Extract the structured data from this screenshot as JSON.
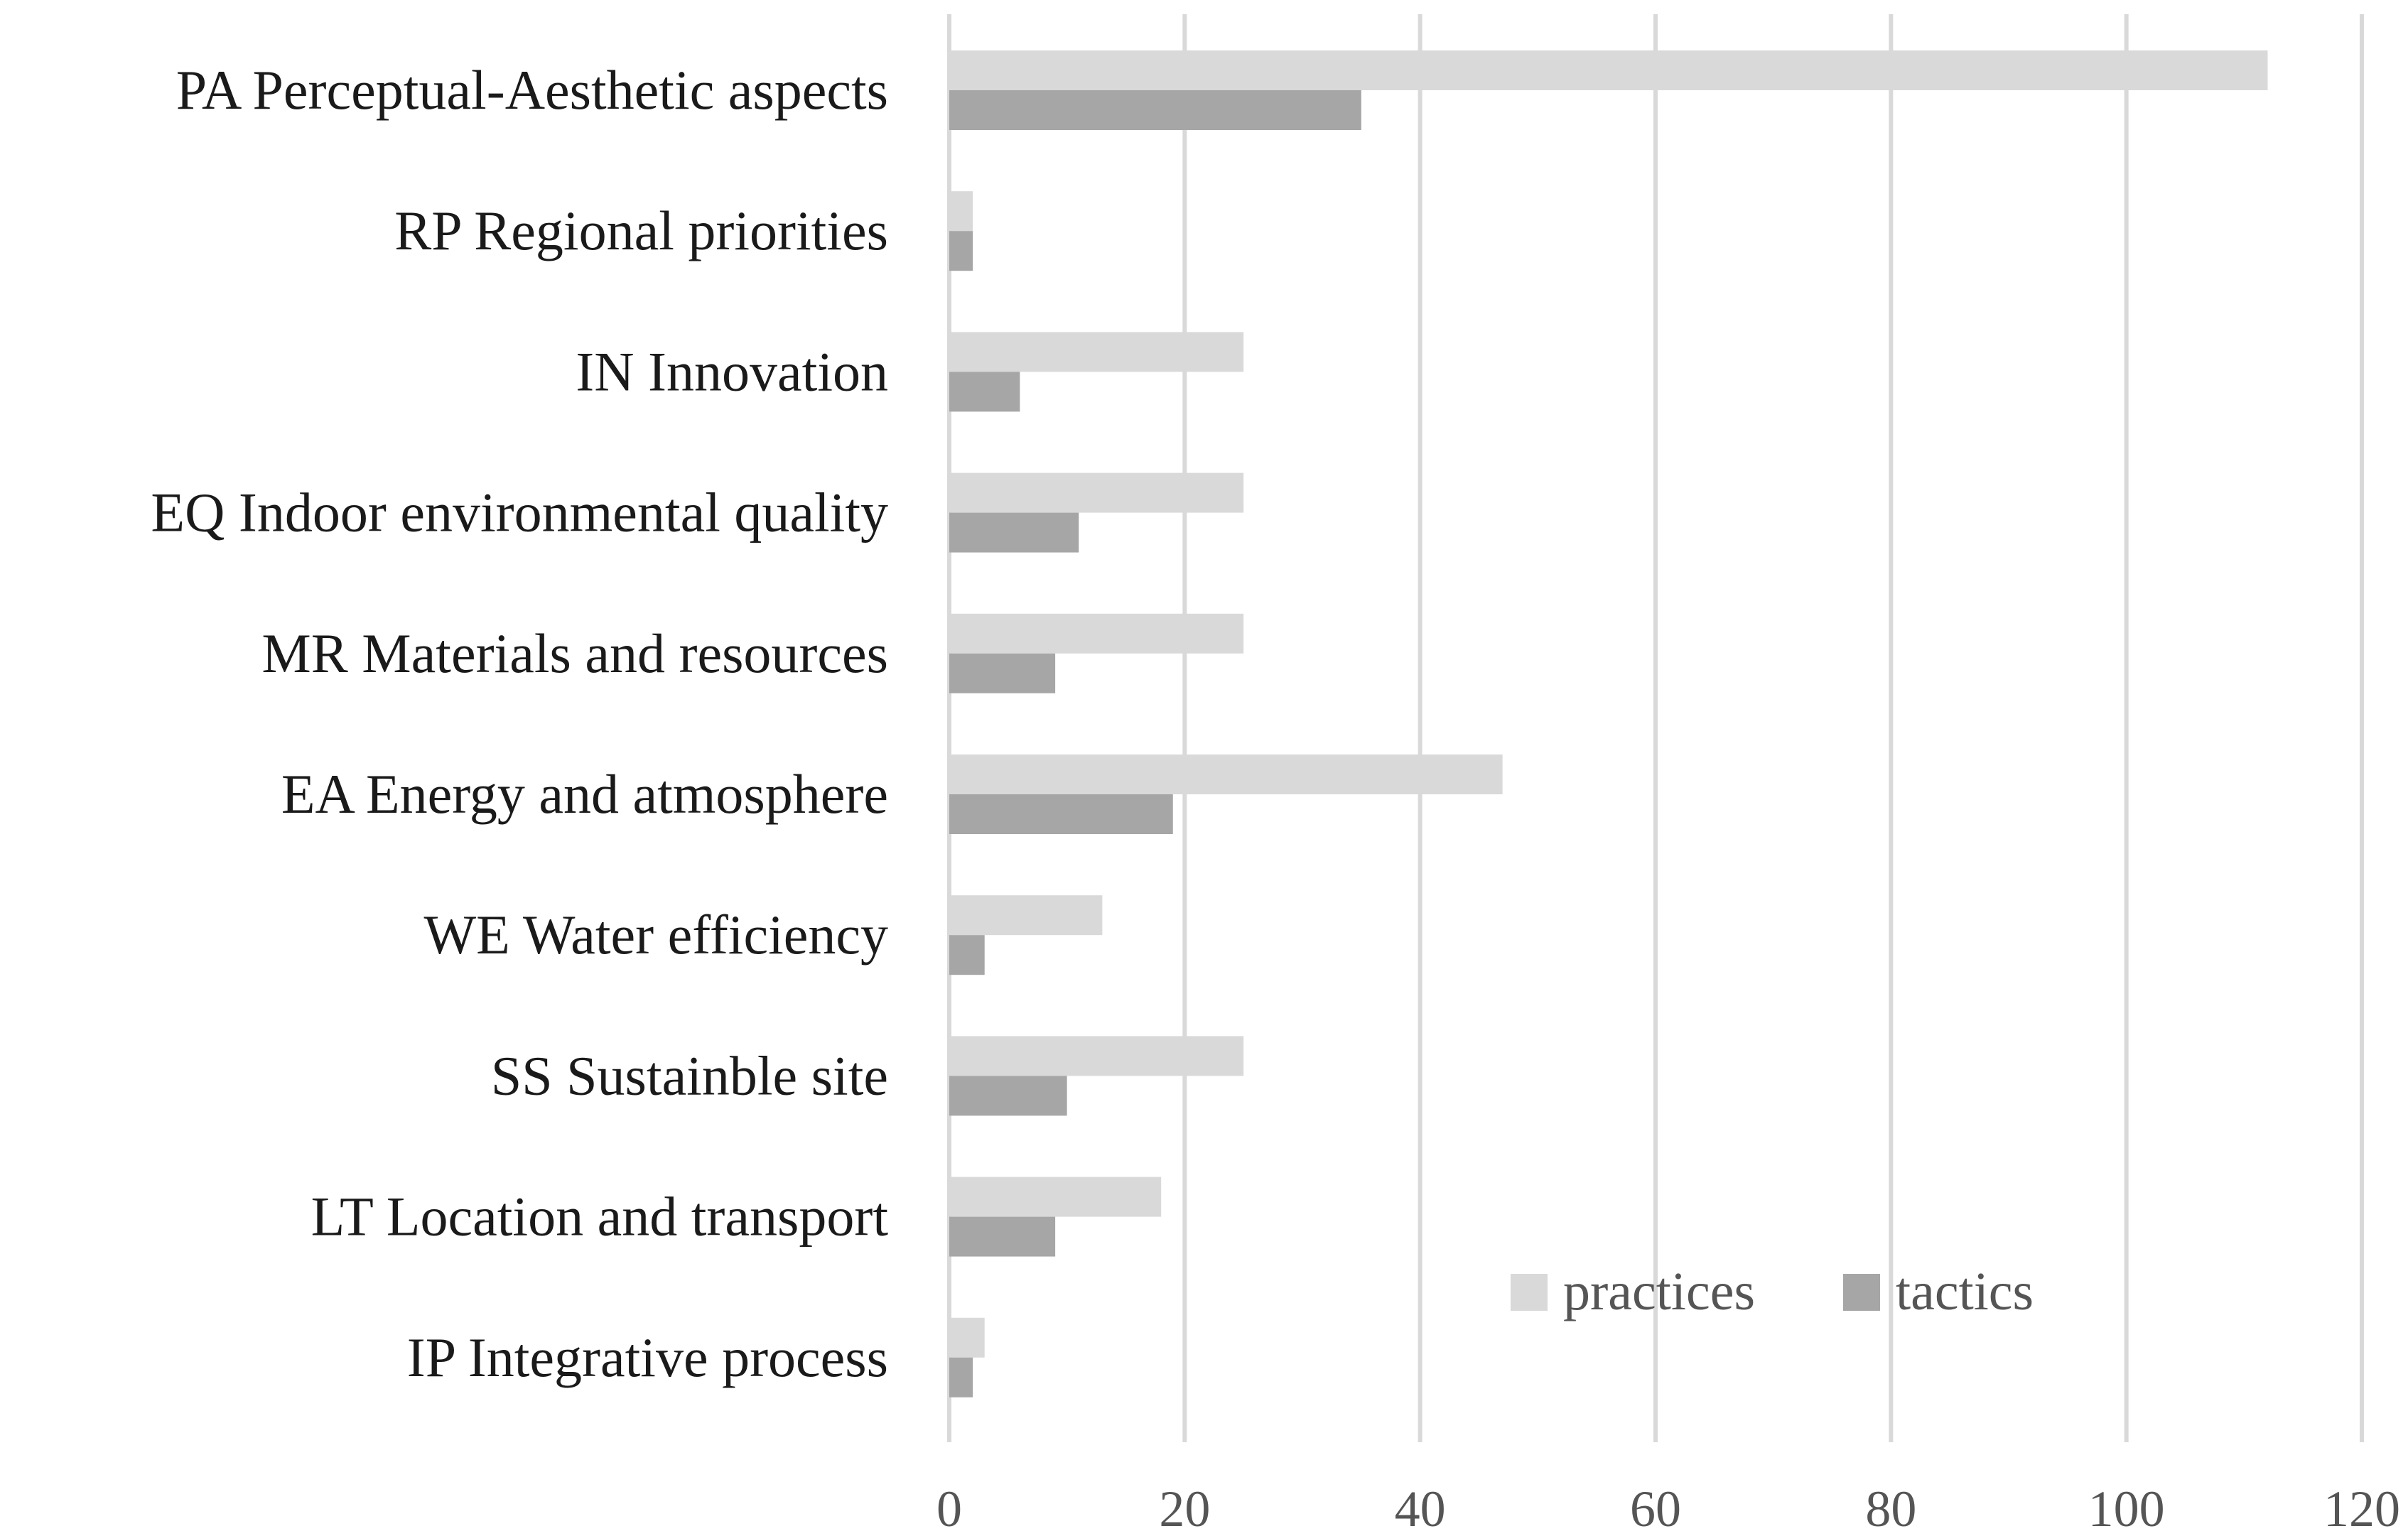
{
  "chart_data": {
    "type": "bar",
    "orientation": "horizontal",
    "categories": [
      "PA Perceptual-Aesthetic aspects",
      "RP Regional priorities",
      "IN Innovation",
      "EQ Indoor environmental quality",
      "MR Materials and resources",
      "EA Energy and atmosphere",
      "WE Water efficiency",
      "SS Sustainble site",
      "LT Location and transport",
      "IP Integrative process"
    ],
    "series": [
      {
        "name": "practices",
        "color": "#d9d9d9",
        "values": [
          112,
          2,
          25,
          25,
          25,
          47,
          13,
          25,
          18,
          3
        ]
      },
      {
        "name": "tactics",
        "color": "#a6a6a6",
        "values": [
          35,
          2,
          6,
          11,
          9,
          19,
          3,
          10,
          9,
          2
        ]
      }
    ],
    "title": "",
    "xlabel": "",
    "ylabel": "",
    "xlim": [
      0,
      120
    ],
    "xticks": [
      "0",
      "20",
      "40",
      "60",
      "80",
      "100",
      "120"
    ],
    "grid": true,
    "legend_position": "bottom-right"
  }
}
